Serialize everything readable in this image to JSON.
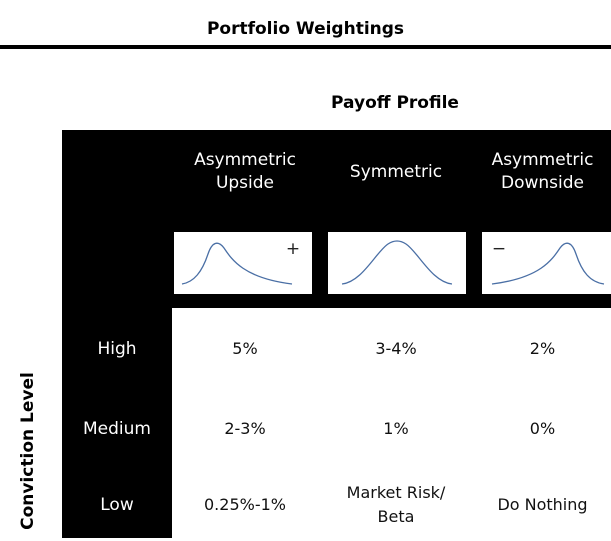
{
  "title": "Portfolio Weightings",
  "column_group": "Payoff Profile",
  "row_group": "Conviction Level",
  "columns": [
    {
      "label": "Asymmetric\nUpside",
      "sign": "+"
    },
    {
      "label": "Symmetric"
    },
    {
      "label": "Asymmetric\nDownside",
      "sign": "−"
    }
  ],
  "rows": [
    {
      "label": "High",
      "cells": [
        "5%",
        "3-4%",
        "2%"
      ]
    },
    {
      "label": "Medium",
      "cells": [
        "2-3%",
        "1%",
        "0%"
      ]
    },
    {
      "label": "Low",
      "cells": [
        "0.25%-1%",
        "Market Risk/\nBeta",
        "Do Nothing"
      ]
    }
  ]
}
